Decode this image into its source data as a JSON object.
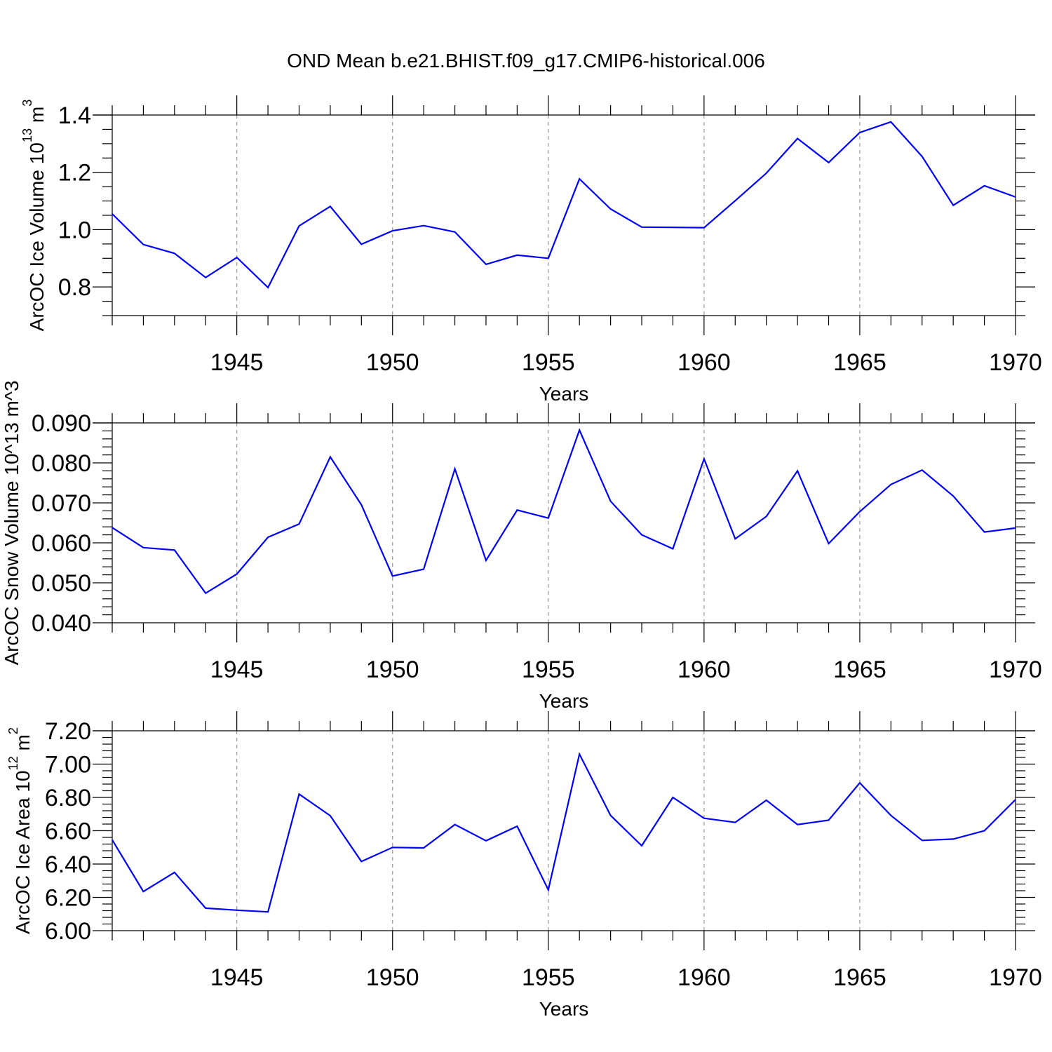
{
  "title": "OND Mean b.e21.BHIST.f09_g17.CMIP6-historical.006",
  "colors": {
    "series": "#0000ff",
    "grid": "#999999"
  },
  "chart_data": [
    {
      "type": "line",
      "title": "",
      "xlabel": "Years",
      "ylabel_html": "ArcOC Ice Volume 10<tspan baseline-shift='super' font-size='65%'>13</tspan> m<tspan baseline-shift='super' font-size='65%'>3</tspan>",
      "ylabel": "ArcOC Ice Volume 10^13 m^3",
      "xlim": [
        1941,
        1970
      ],
      "ylim": [
        0.7,
        1.4
      ],
      "yticks": [
        0.8,
        1.0,
        1.2,
        1.4
      ],
      "ytick_labels": [
        "0.8",
        "1.0",
        "1.2",
        "1.4"
      ],
      "yminor_step": 0.05,
      "xticks": [
        1945,
        1950,
        1955,
        1960,
        1965,
        1970
      ],
      "xtick_labels": [
        "1945",
        "1950",
        "1955",
        "1960",
        "1965",
        "1970"
      ],
      "grid": "vertical dashed at major x ticks",
      "x": [
        1941,
        1942,
        1943,
        1944,
        1945,
        1946,
        1947,
        1948,
        1949,
        1950,
        1951,
        1952,
        1953,
        1954,
        1955,
        1956,
        1957,
        1958,
        1959,
        1960,
        1961,
        1962,
        1963,
        1964,
        1965,
        1966,
        1967,
        1968,
        1969,
        1970
      ],
      "values": [
        1.055,
        0.948,
        0.917,
        0.833,
        0.903,
        0.798,
        1.013,
        1.081,
        0.949,
        0.996,
        1.014,
        0.992,
        0.879,
        0.911,
        0.9,
        1.177,
        1.072,
        1.009,
        1.008,
        1.007,
        1.101,
        1.197,
        1.318,
        1.234,
        1.339,
        1.376,
        1.255,
        1.085,
        1.153,
        1.114
      ]
    },
    {
      "type": "line",
      "title": "",
      "xlabel": "Years",
      "ylabel": "ArcOC Snow Volume 10^13 m^3",
      "xlim": [
        1941,
        1970
      ],
      "ylim": [
        0.04,
        0.09
      ],
      "yticks": [
        0.04,
        0.05,
        0.06,
        0.07,
        0.08,
        0.09
      ],
      "ytick_labels": [
        "0.040",
        "0.050",
        "0.060",
        "0.070",
        "0.080",
        "0.090"
      ],
      "yminor_step": 0.002,
      "xticks": [
        1945,
        1950,
        1955,
        1960,
        1965,
        1970
      ],
      "xtick_labels": [
        "1945",
        "1950",
        "1955",
        "1960",
        "1965",
        "1970"
      ],
      "grid": "vertical dashed at major x ticks",
      "x": [
        1941,
        1942,
        1943,
        1944,
        1945,
        1946,
        1947,
        1948,
        1949,
        1950,
        1951,
        1952,
        1953,
        1954,
        1955,
        1956,
        1957,
        1958,
        1959,
        1960,
        1961,
        1962,
        1963,
        1964,
        1965,
        1966,
        1967,
        1968,
        1969,
        1970
      ],
      "values": [
        0.0638,
        0.0588,
        0.0582,
        0.0474,
        0.0522,
        0.0614,
        0.0647,
        0.0815,
        0.0695,
        0.0517,
        0.0534,
        0.0785,
        0.0556,
        0.0682,
        0.0662,
        0.0882,
        0.0704,
        0.062,
        0.0585,
        0.081,
        0.061,
        0.0666,
        0.078,
        0.0598,
        0.0678,
        0.0746,
        0.0782,
        0.0717,
        0.0627,
        0.0637
      ]
    },
    {
      "type": "line",
      "title": "",
      "xlabel": "Years",
      "ylabel_html": "ArcOC Ice Area 10<tspan baseline-shift='super' font-size='65%'>12</tspan> m<tspan baseline-shift='super' font-size='65%'>2</tspan>",
      "ylabel": "ArcOC Ice Area 10^12 m^2",
      "xlim": [
        1941,
        1970
      ],
      "ylim": [
        6.0,
        7.2
      ],
      "yticks": [
        6.0,
        6.2,
        6.4,
        6.6,
        6.8,
        7.0,
        7.2
      ],
      "ytick_labels": [
        "6.00",
        "6.20",
        "6.40",
        "6.60",
        "6.80",
        "7.00",
        "7.20"
      ],
      "yminor_step": 0.04,
      "xticks": [
        1945,
        1950,
        1955,
        1960,
        1965,
        1970
      ],
      "xtick_labels": [
        "1945",
        "1950",
        "1955",
        "1960",
        "1965",
        "1970"
      ],
      "grid": "vertical dashed at major x ticks",
      "x": [
        1941,
        1942,
        1943,
        1944,
        1945,
        1946,
        1947,
        1948,
        1949,
        1950,
        1951,
        1952,
        1953,
        1954,
        1955,
        1956,
        1957,
        1958,
        1959,
        1960,
        1961,
        1962,
        1963,
        1964,
        1965,
        1966,
        1967,
        1968,
        1969,
        1970
      ],
      "values": [
        6.545,
        6.235,
        6.35,
        6.135,
        6.123,
        6.113,
        6.82,
        6.69,
        6.415,
        6.5,
        6.497,
        6.637,
        6.54,
        6.627,
        6.245,
        7.06,
        6.692,
        6.51,
        6.8,
        6.675,
        6.65,
        6.783,
        6.637,
        6.663,
        6.887,
        6.692,
        6.542,
        6.55,
        6.6,
        6.787
      ]
    }
  ]
}
